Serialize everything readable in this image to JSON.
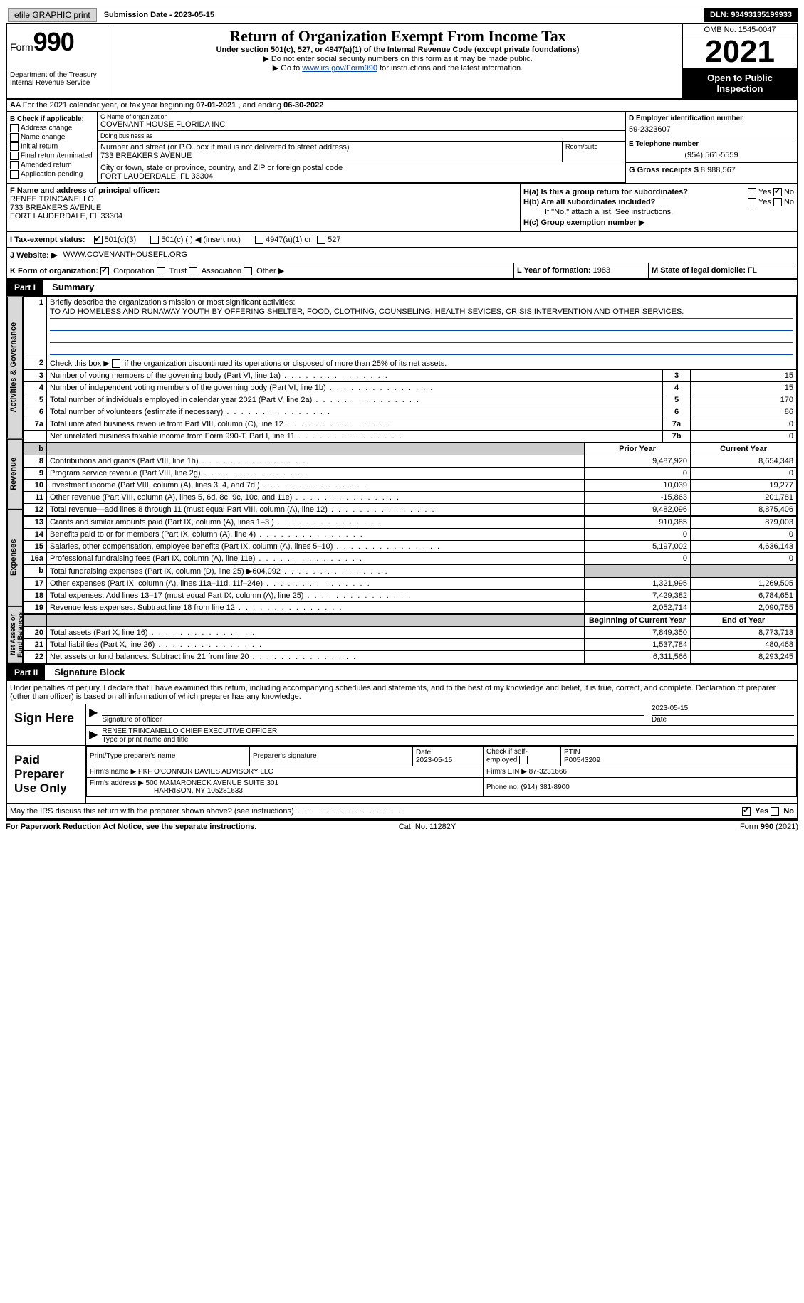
{
  "topbar": {
    "efile": "efile GRAPHIC print",
    "subdate_lbl": "Submission Date - 2023-05-15",
    "dln": "DLN: 93493135199933"
  },
  "header": {
    "form_lbl": "Form",
    "form_num": "990",
    "dept": "Department of the Treasury",
    "irs": "Internal Revenue Service",
    "title": "Return of Organization Exempt From Income Tax",
    "sub": "Under section 501(c), 527, or 4947(a)(1) of the Internal Revenue Code (except private foundations)",
    "note1": "▶ Do not enter social security numbers on this form as it may be made public.",
    "note2_pre": "▶ Go to ",
    "note2_link": "www.irs.gov/Form990",
    "note2_post": " for instructions and the latest information.",
    "omb": "OMB No. 1545-0047",
    "year": "2021",
    "open": "Open to Public Inspection"
  },
  "rowA": {
    "text_pre": "A For the 2021 calendar year, or tax year beginning ",
    "begin": "07-01-2021",
    "mid": "  , and ending ",
    "end": "06-30-2022"
  },
  "checkB": {
    "hdr": "B Check if applicable:",
    "items": [
      "Address change",
      "Name change",
      "Initial return",
      "Final return/terminated",
      "Amended return",
      "Application pending"
    ]
  },
  "boxC": {
    "name_lbl": "C Name of organization",
    "name": "COVENANT HOUSE FLORIDA INC",
    "dba_lbl": "Doing business as",
    "dba": "",
    "street_lbl": "Number and street (or P.O. box if mail is not delivered to street address)",
    "street": "733 BREAKERS AVENUE",
    "room_lbl": "Room/suite",
    "city_lbl": "City or town, state or province, country, and ZIP or foreign postal code",
    "city": "FORT LAUDERDALE, FL  33304"
  },
  "boxD": {
    "lbl": "D Employer identification number",
    "val": "59-2323607"
  },
  "boxE": {
    "lbl": "E Telephone number",
    "val": "(954) 561-5559"
  },
  "boxG": {
    "lbl": "G Gross receipts $",
    "val": "8,988,567"
  },
  "boxF": {
    "lbl": "F Name and address of principal officer:",
    "name": "RENEE TRINCANELLO",
    "street": "733 BREAKERS AVENUE",
    "city": "FORT LAUDERDALE, FL  33304"
  },
  "boxH": {
    "a_lbl": "H(a)  Is this a group return for subordinates?",
    "a_yes": "Yes",
    "a_no": "No",
    "a_checked": "No",
    "b_lbl": "H(b)  Are all subordinates included?",
    "b_note": "If \"No,\" attach a list. See instructions.",
    "c_lbl": "H(c)  Group exemption number ▶",
    "c_val": ""
  },
  "rowI": {
    "lbl": "I  Tax-exempt status:",
    "o1": "501(c)(3)",
    "o2": "501(c) (  ) ◀ (insert no.)",
    "o3": "4947(a)(1) or",
    "o4": "527"
  },
  "rowJ": {
    "lbl": "J  Website: ▶",
    "val": "WWW.COVENANTHOUSEFL.ORG"
  },
  "rowK": {
    "lbl": "K Form of organization:",
    "o1": "Corporation",
    "o2": "Trust",
    "o3": "Association",
    "o4": "Other ▶"
  },
  "rowL": {
    "lbl": "L Year of formation:",
    "val": "1983"
  },
  "rowM": {
    "lbl": "M State of legal domicile:",
    "val": "FL"
  },
  "parts": {
    "p1": "Part I",
    "p1t": "Summary",
    "p2": "Part II",
    "p2t": "Signature Block"
  },
  "tabs": {
    "gov": "Activities & Governance",
    "rev": "Revenue",
    "exp": "Expenses",
    "net": "Net Assets or Fund Balances"
  },
  "summary": {
    "q1": "Briefly describe the organization's mission or most significant activities:",
    "mission": "TO AID HOMELESS AND RUNAWAY YOUTH BY OFFERING SHELTER, FOOD, CLOTHING, COUNSELING, HEALTH SEVICES, CRISIS INTERVENTION AND OTHER SERVICES.",
    "q2_pre": "Check this box ▶",
    "q2_post": " if the organization discontinued its operations or disposed of more than 25% of its net assets.",
    "rows_gov": [
      {
        "n": "3",
        "t": "Number of voting members of the governing body (Part VI, line 1a)",
        "box": "3",
        "v": "15"
      },
      {
        "n": "4",
        "t": "Number of independent voting members of the governing body (Part VI, line 1b)",
        "box": "4",
        "v": "15"
      },
      {
        "n": "5",
        "t": "Total number of individuals employed in calendar year 2021 (Part V, line 2a)",
        "box": "5",
        "v": "170"
      },
      {
        "n": "6",
        "t": "Total number of volunteers (estimate if necessary)",
        "box": "6",
        "v": "86"
      },
      {
        "n": "7a",
        "t": "Total unrelated business revenue from Part VIII, column (C), line 12",
        "box": "7a",
        "v": "0"
      },
      {
        "n": "",
        "t": "Net unrelated business taxable income from Form 990-T, Part I, line 11",
        "box": "7b",
        "v": "0"
      }
    ],
    "col_prior": "Prior Year",
    "col_current": "Current Year",
    "rows_rev": [
      {
        "n": "8",
        "t": "Contributions and grants (Part VIII, line 1h)",
        "p": "9,487,920",
        "c": "8,654,348"
      },
      {
        "n": "9",
        "t": "Program service revenue (Part VIII, line 2g)",
        "p": "0",
        "c": "0"
      },
      {
        "n": "10",
        "t": "Investment income (Part VIII, column (A), lines 3, 4, and 7d )",
        "p": "10,039",
        "c": "19,277"
      },
      {
        "n": "11",
        "t": "Other revenue (Part VIII, column (A), lines 5, 6d, 8c, 9c, 10c, and 11e)",
        "p": "-15,863",
        "c": "201,781"
      },
      {
        "n": "12",
        "t": "Total revenue—add lines 8 through 11 (must equal Part VIII, column (A), line 12)",
        "p": "9,482,096",
        "c": "8,875,406"
      }
    ],
    "rows_exp": [
      {
        "n": "13",
        "t": "Grants and similar amounts paid (Part IX, column (A), lines 1–3 )",
        "p": "910,385",
        "c": "879,003"
      },
      {
        "n": "14",
        "t": "Benefits paid to or for members (Part IX, column (A), line 4)",
        "p": "0",
        "c": "0"
      },
      {
        "n": "15",
        "t": "Salaries, other compensation, employee benefits (Part IX, column (A), lines 5–10)",
        "p": "5,197,002",
        "c": "4,636,143"
      },
      {
        "n": "16a",
        "t": "Professional fundraising fees (Part IX, column (A), line 11e)",
        "p": "0",
        "c": "0"
      },
      {
        "n": "b",
        "t": "Total fundraising expenses (Part IX, column (D), line 25) ▶604,092",
        "p": "",
        "c": "",
        "grey": true
      },
      {
        "n": "17",
        "t": "Other expenses (Part IX, column (A), lines 11a–11d, 11f–24e)",
        "p": "1,321,995",
        "c": "1,269,505"
      },
      {
        "n": "18",
        "t": "Total expenses. Add lines 13–17 (must equal Part IX, column (A), line 25)",
        "p": "7,429,382",
        "c": "6,784,651"
      },
      {
        "n": "19",
        "t": "Revenue less expenses. Subtract line 18 from line 12",
        "p": "2,052,714",
        "c": "2,090,755"
      }
    ],
    "col_begin": "Beginning of Current Year",
    "col_end": "End of Year",
    "rows_net": [
      {
        "n": "20",
        "t": "Total assets (Part X, line 16)",
        "p": "7,849,350",
        "c": "8,773,713"
      },
      {
        "n": "21",
        "t": "Total liabilities (Part X, line 26)",
        "p": "1,537,784",
        "c": "480,468"
      },
      {
        "n": "22",
        "t": "Net assets or fund balances. Subtract line 21 from line 20",
        "p": "6,311,566",
        "c": "8,293,245"
      }
    ]
  },
  "sig": {
    "perjury": "Under penalties of perjury, I declare that I have examined this return, including accompanying schedules and statements, and to the best of my knowledge and belief, it is true, correct, and complete. Declaration of preparer (other than officer) is based on all information of which preparer has any knowledge.",
    "sign_here": "Sign Here",
    "sig_officer": "Signature of officer",
    "sig_date": "2023-05-15",
    "date_lbl": "Date",
    "officer_name": "RENEE TRINCANELLO  CHIEF EXECUTIVE OFFICER",
    "officer_name_lbl": "Type or print name and title",
    "paid": "Paid Preparer Use Only",
    "prep_name_lbl": "Print/Type preparer's name",
    "prep_name": "",
    "prep_sig_lbl": "Preparer's signature",
    "prep_date_lbl": "Date",
    "prep_date": "2023-05-15",
    "self_emp": "Check         if self-employed",
    "ptin_lbl": "PTIN",
    "ptin": "P00543209",
    "firm_name_lbl": "Firm's name     ▶",
    "firm_name": "PKF O'CONNOR DAVIES ADVISORY LLC",
    "firm_ein_lbl": "Firm's EIN ▶",
    "firm_ein": "87-3231666",
    "firm_addr_lbl": "Firm's address ▶",
    "firm_addr1": "500 MAMARONECK AVENUE SUITE 301",
    "firm_addr2": "HARRISON, NY  105281633",
    "firm_phone_lbl": "Phone no.",
    "firm_phone": "(914) 381-8900",
    "may_discuss": "May the IRS discuss this return with the preparer shown above? (see instructions)",
    "yes": "Yes",
    "no": "No"
  },
  "footer": {
    "pra": "For Paperwork Reduction Act Notice, see the separate instructions.",
    "cat": "Cat. No. 11282Y",
    "form": "Form 990 (2021)"
  }
}
